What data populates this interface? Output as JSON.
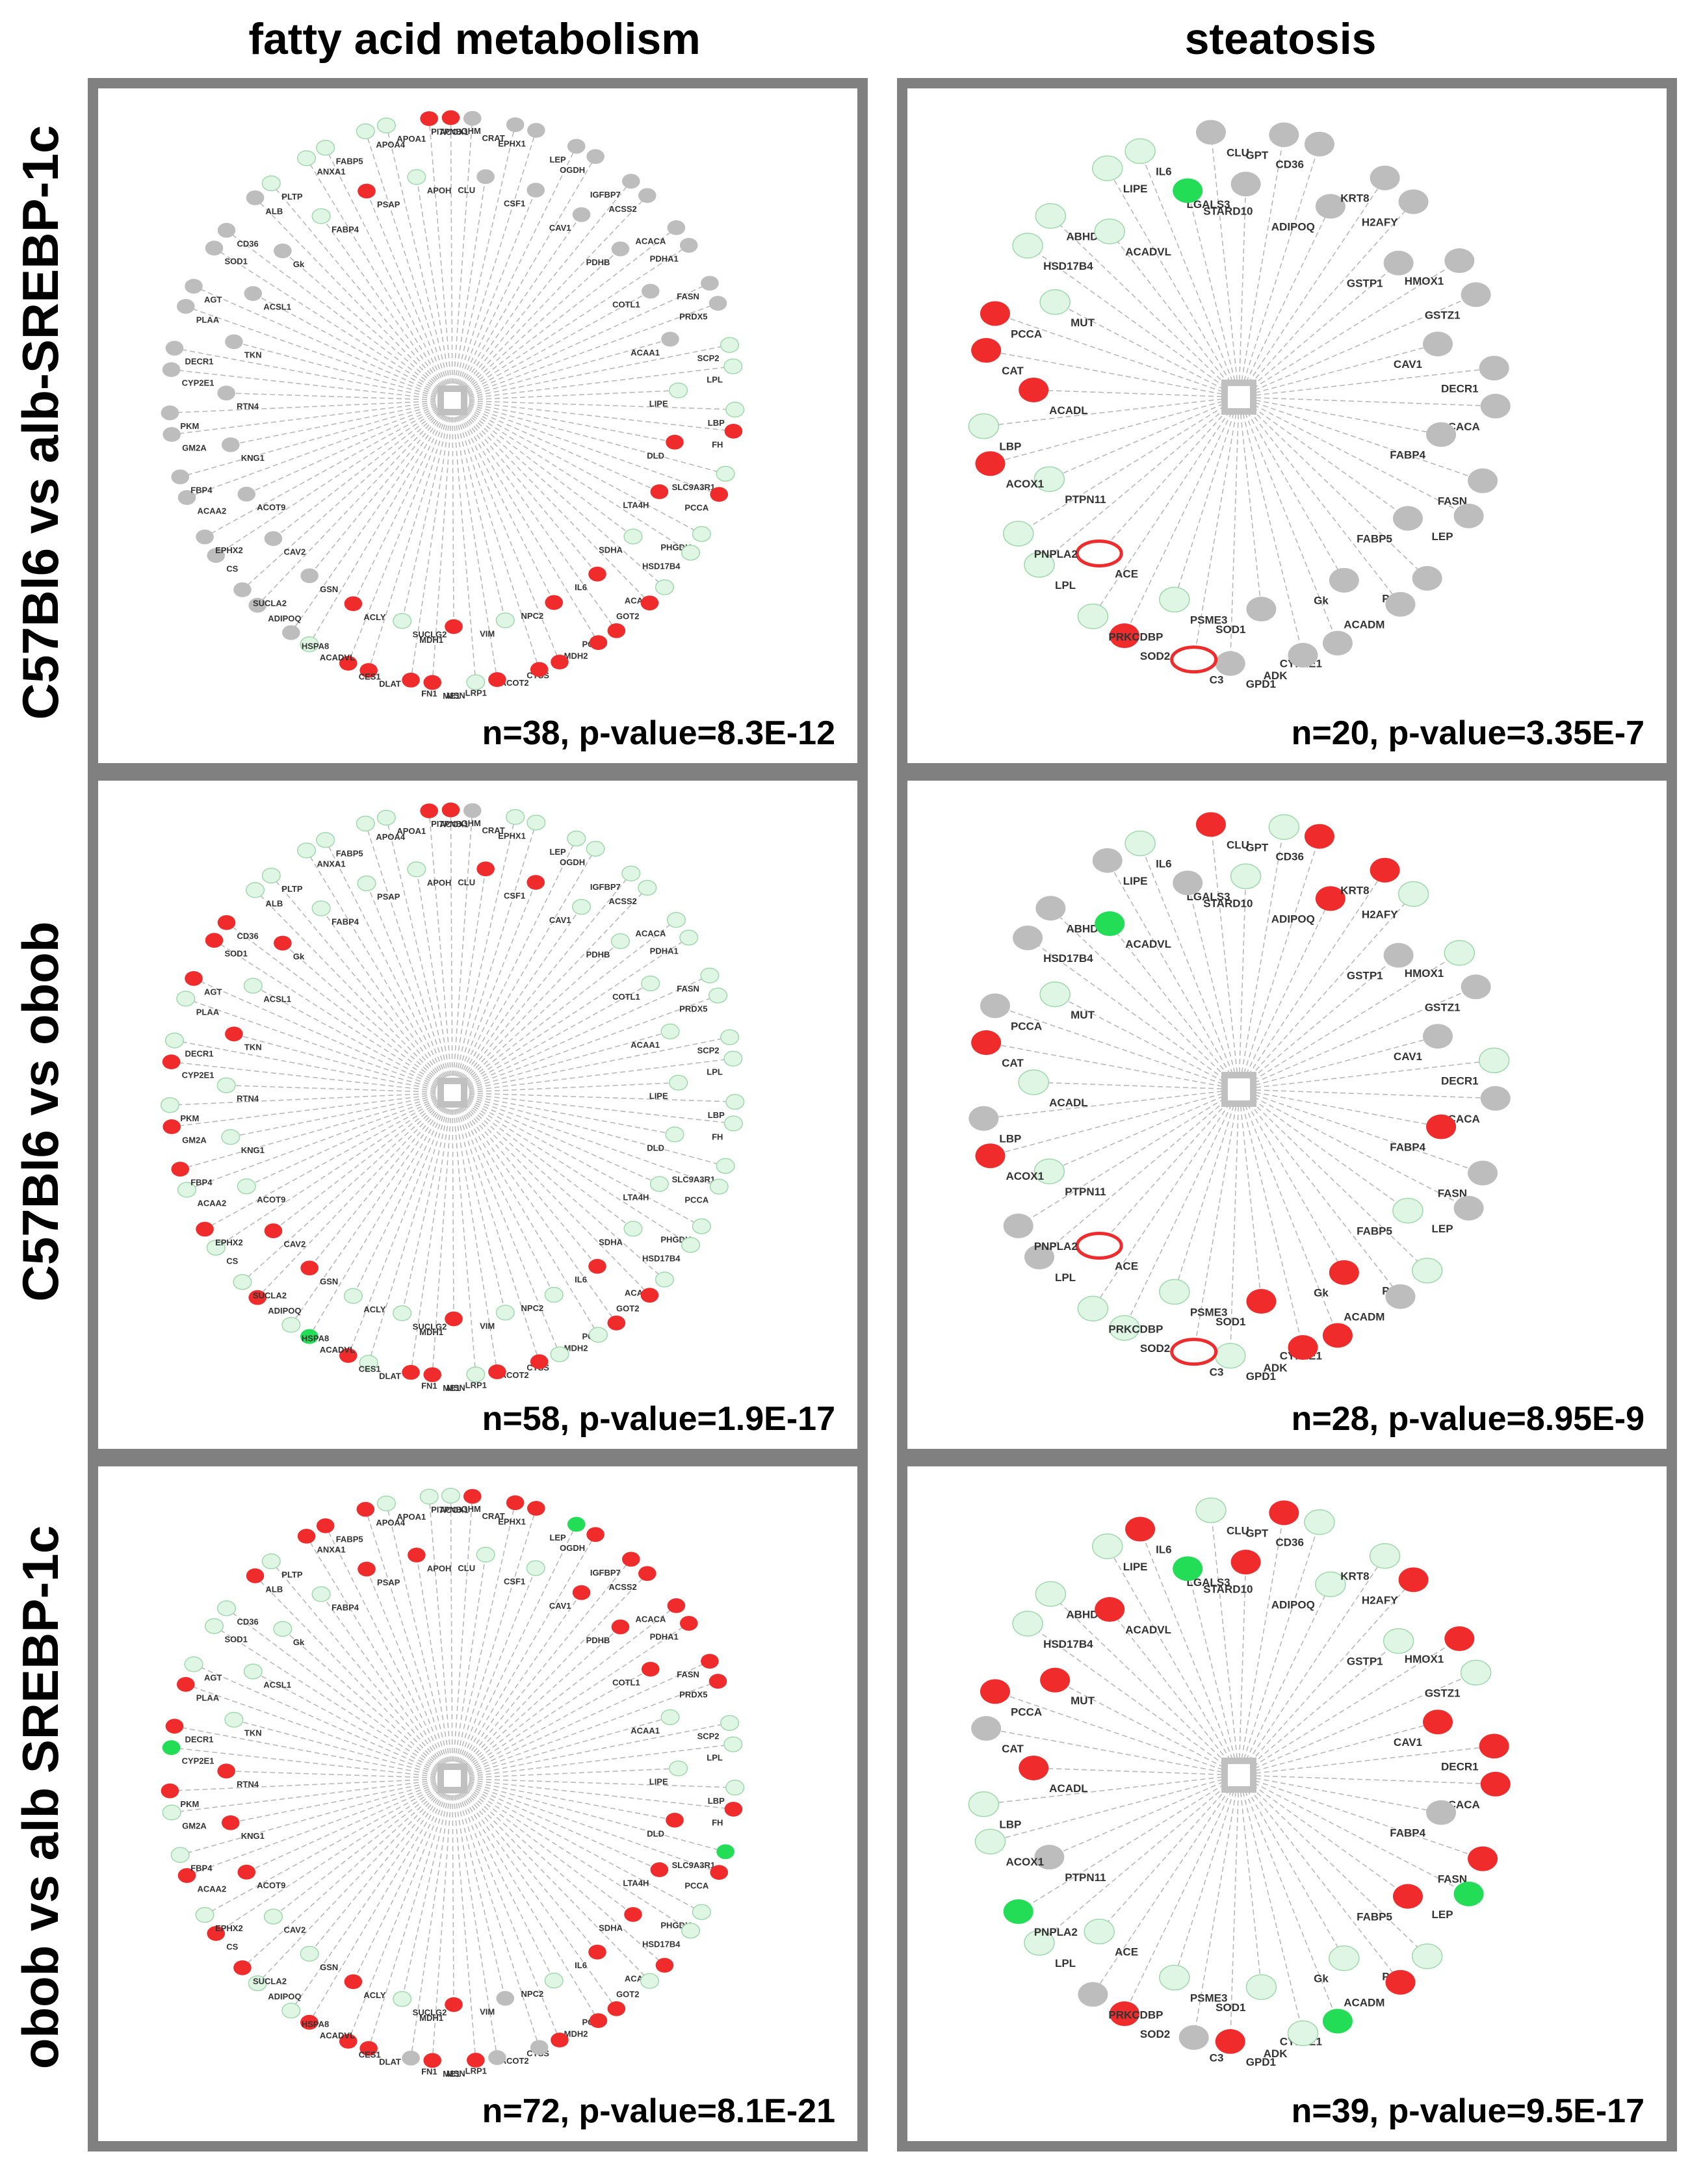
{
  "columns": [
    "fatty acid metabolism",
    "steatosis"
  ],
  "rows": [
    "C57Bl6 vs alb-SREBP-1c",
    "C57Bl6 vs obob",
    "obob vs alb SREBP-1c"
  ],
  "colors": {
    "red": "#ef2b2b",
    "green": "#22dd55",
    "lightgreen": "#dff6e4",
    "grey": "#bdbdbd",
    "edge": "#b8b8b8",
    "hub": "#c0c0c0"
  },
  "fam": {
    "genes": [
      "PITPNB",
      "CLU",
      "CRAT",
      "EPHX1",
      "CSF1",
      "LEP",
      "OGDH",
      "CAV1",
      "IGFBP7",
      "ACSS2",
      "PDHB",
      "ACACA",
      "PDHA1",
      "COTL1",
      "FASN",
      "PRDX5",
      "ACAA1",
      "SCP2",
      "LPL",
      "LIPE",
      "LBP",
      "FH",
      "DLD",
      "SLC9A3R1",
      "PCCA",
      "LTA4H",
      "PHGDH",
      "HSD17B4",
      "SDHA",
      "ACADL",
      "GOT2",
      "IL6",
      "PCCB",
      "MDH2",
      "NPC2",
      "CTSS",
      "ACOT2",
      "VIM",
      "LRP1",
      "MSN",
      "MDH1",
      "ME1",
      "FN1",
      "SUCLG2",
      "DLAT",
      "CES1",
      "ACLY",
      "ACADVL",
      "HSPA8",
      "GSN",
      "ADIPOQ",
      "SUCLA2",
      "CAV2",
      "CS",
      "EPHX2",
      "ACOT9",
      "ACAA2",
      "FBP4",
      "KNG1",
      "GM2A",
      "PKM",
      "RTN4",
      "CYP2E1",
      "DECR1",
      "TKN",
      "PLAA",
      "AGT",
      "ACSL1",
      "SOD1",
      "CD36",
      "Gk",
      "ALB",
      "PLTP",
      "FABP4",
      "ANXA1",
      "FABP5",
      "PSAP",
      "APOA4",
      "APOA1",
      "APOH",
      "ACOX1",
      "GHM"
    ],
    "panels": [
      {
        "stat": "n=38, p-value=8.3E-12",
        "states": {
          "PSAP": "r",
          "FN1": "r",
          "LRP1": "r",
          "PCCB": "r",
          "NPC2": "r",
          "ME1": "r",
          "MDH1": "r",
          "ACOT2": "r",
          "ACOX1": "r",
          "GHM": "r",
          "ACLY": "r",
          "DLAT": "r",
          "CES1": "r",
          "IL6": "r",
          "GOT2": "r",
          "MDH2": "r",
          "DLD": "r",
          "FH": "r",
          "LTA4H": "r",
          "PCCA": "r",
          "CTSS": "r",
          "ACADL": "g",
          "SDHA": "g",
          "PHGDH": "g",
          "HSD17B4": "g",
          "SLC9A3R1": "g",
          "LBP": "g",
          "LPL": "g",
          "LIPE": "g",
          "SCP2": "g",
          "ANXA1": "g",
          "APOA4": "g",
          "APOA1": "g",
          "APOH": "g",
          "FABP5": "g",
          "FABP4": "g",
          "PLTP": "g",
          "ACADVL": "g",
          "MSN": "g",
          "VIM": "g",
          "SUCLG2": "g"
        }
      },
      {
        "stat": "n=58, p-value=1.9E-17",
        "states": {
          "GSN": "r",
          "ADIPOQ": "r",
          "CAV2": "r",
          "CLU": "r",
          "EPHX2": "r",
          "CSF1": "r",
          "FBP4": "r",
          "CYP2E1": "r",
          "TKN": "r",
          "AGT": "r",
          "SOD1": "r",
          "CD36": "r",
          "Gk": "r",
          "GM2A": "r",
          "FN1": "r",
          "LRP1": "r",
          "PCCB": "r",
          "ME1": "r",
          "MDH1": "r",
          "ACOT2": "r",
          "ACOX1": "r",
          "GHM": "r",
          "CES1": "r",
          "IL6": "r",
          "GOT2": "r",
          "ACADVL": "G",
          "HSPA8": "g",
          "SUCLA2": "g",
          "CS": "g",
          "CRAT": "g",
          "EPHX1": "g",
          "ACOT9": "g",
          "ACAA2": "g",
          "KNG1": "g",
          "PKM": "g",
          "RTN4": "g",
          "DECR1": "g",
          "PLAA": "g",
          "ACSL1": "g",
          "ALB": "g",
          "PLTP": "g",
          "FABP4": "g",
          "FABP5": "g",
          "PSAP": "g",
          "APOA4": "g",
          "APOA1": "g",
          "APOH": "g",
          "ANXA1": "g",
          "ACLY": "g",
          "DLAT": "g",
          "SUCLG2": "g",
          "MSN": "g",
          "VIM": "g",
          "CTSS": "g",
          "NPC2": "g",
          "MDH2": "g",
          "PHGDH": "g",
          "HSD17B4": "g",
          "ACADL": "g",
          "LPL": "g",
          "LIPE": "g",
          "LBP": "g",
          "FH": "g",
          "DLD": "g",
          "SLC9A3R1": "g",
          "PCCA": "g",
          "LTA4H": "g",
          "SDHA": "g",
          "ACAA1": "g",
          "SCP2": "g",
          "COTL1": "g",
          "FASN": "g",
          "PRDX5": "g",
          "PDHA1": "g",
          "PDHB": "g",
          "ACACA": "g",
          "ACSS2": "g",
          "IGFBP7": "g",
          "CAV1": "g",
          "OGDH": "g",
          "LEP": "g"
        }
      },
      {
        "stat": "n=72, p-value=8.1E-21",
        "states": {
          "PITPNB": "r",
          "SUCLA2": "r",
          "CS": "r",
          "CRAT": "r",
          "EPHX1": "r",
          "ACOT9": "r",
          "OGDH": "r",
          "CAV1": "r",
          "ACAA2": "r",
          "KNG1": "r",
          "PKM": "r",
          "RTN4": "r",
          "DECR1": "r",
          "PLAA": "r",
          "ALB": "r",
          "FABP5": "r",
          "PSAP": "r",
          "APOA4": "r",
          "APOH": "r",
          "ANXA1": "r",
          "ACLY": "r",
          "DLAT": "r",
          "ACADVL": "r",
          "CES1": "r",
          "MDH1": "r",
          "ME1": "r",
          "MSN": "r",
          "PCCB": "r",
          "MDH2": "r",
          "CTSS": "r",
          "IL6": "r",
          "SDHA": "r",
          "ACADL": "r",
          "LTA4H": "r",
          "DLD": "r",
          "FH": "r",
          "PCCA": "r",
          "FASN": "r",
          "COTL1": "r",
          "PRDX5": "r",
          "ACSS2": "r",
          "PDHB": "r",
          "ACACA": "r",
          "PDHA1": "r",
          "IGFBP7": "r",
          "CYP2E1": "G",
          "SLC9A3R1": "G",
          "LEP": "G",
          "CLU": "g",
          "CSF1": "g",
          "EPHX2": "g",
          "GSN": "g",
          "HSPA8": "g",
          "ADIPOQ": "g",
          "CAV2": "g",
          "FBP4": "g",
          "GM2A": "g",
          "TKN": "g",
          "AGT": "g",
          "SOD1": "g",
          "CD36": "g",
          "Gk": "g",
          "ACSL1": "g",
          "PLTP": "g",
          "FABP4": "g",
          "APOA1": "g",
          "ACOX1": "g",
          "GHM": "g",
          "SUCLG2": "g",
          "NPC2": "g",
          "GOT2": "g",
          "HSD17B4": "g",
          "PHGDH": "g",
          "LBP": "g",
          "LPL": "g",
          "LIPE": "g",
          "SCP2": "g",
          "ACAA1": "g"
        }
      }
    ]
  },
  "ste": {
    "genes": [
      "CLU",
      "LGALS3",
      "GPT",
      "CD36",
      "ADIPOQ",
      "KRT8",
      "H2AFY",
      "GSTP1",
      "HMOX1",
      "GSTZ1",
      "CAV1",
      "DECR1",
      "ACACA",
      "FABP4",
      "FASN",
      "LEP",
      "FABP5",
      "PCK1",
      "ACADM",
      "Gk",
      "CYP2E1",
      "ADK",
      "SOD1",
      "GPD1",
      "C3",
      "PSME3",
      "SOD2",
      "PRKCDBP",
      "ACE",
      "LPL",
      "PNPLA2",
      "PTPN11",
      "ACOX1",
      "LBP",
      "ACADL",
      "CAT",
      "PCCA",
      "MUT",
      "HSD17B4",
      "ABHD5",
      "ACADVL",
      "LIPE",
      "IL6",
      "STARD10"
    ],
    "panels": [
      {
        "stat": "n=20, p-value=3.35E-7",
        "states": {
          "C3": "ro",
          "ACE": "ro",
          "SOD2": "r",
          "PCCA": "r",
          "ACADL": "r",
          "ACOX1": "r",
          "CAT": "r",
          "PSME3": "g",
          "PRKCDBP": "g",
          "PTPN11": "g",
          "MUT": "g",
          "ACADVL": "g",
          "IL6": "g",
          "LIPE": "g",
          "STARD10": "G",
          "HSD17B4": "g",
          "ABHD5": "g",
          "LBP": "g",
          "PNPLA2": "g",
          "LPL": "g"
        }
      },
      {
        "stat": "n=28, p-value=8.95E-9",
        "states": {
          "CLU": "r",
          "ADIPOQ": "r",
          "CD36": "r",
          "KRT8": "r",
          "FABP4": "r",
          "SOD1": "r",
          "CYP2E1": "r",
          "Gk": "r",
          "ADK": "r",
          "ACE": "ro",
          "C3": "ro",
          "ACOX1": "r",
          "CAT": "r",
          "ACADVL": "G",
          "LGALS3": "g",
          "GPT": "g",
          "H2AFY": "g",
          "HMOX1": "g",
          "DECR1": "g",
          "FABP5": "g",
          "PCK1": "g",
          "GPD1": "g",
          "SOD2": "g",
          "PSME3": "g",
          "PRKCDBP": "g",
          "PTPN11": "g",
          "ACADL": "g",
          "MUT": "g",
          "IL6": "g"
        }
      },
      {
        "stat": "n=39, p-value=9.5E-17",
        "states": {
          "LGALS3": "r",
          "GPT": "r",
          "H2AFY": "r",
          "HMOX1": "r",
          "CAV1": "r",
          "DECR1": "r",
          "ACACA": "r",
          "FABP5": "r",
          "FASN": "r",
          "ACADM": "r",
          "GPD1": "r",
          "SOD2": "r",
          "PCCA": "r",
          "ACADL": "r",
          "MUT": "r",
          "ACADVL": "r",
          "IL6": "r",
          "CYP2E1": "G",
          "PNPLA2": "G",
          "LEP": "G",
          "STARD10": "G",
          "CLU": "g",
          "CD36": "g",
          "ADIPOQ": "g",
          "KRT8": "g",
          "GSTP1": "g",
          "GSTZ1": "g",
          "PCK1": "g",
          "SOD1": "g",
          "Gk": "g",
          "ADK": "g",
          "PSME3": "g",
          "ACE": "g",
          "ACOX1": "g",
          "LPL": "g",
          "LBP": "g",
          "ABHD5": "g",
          "HSD17B4": "g",
          "LIPE": "g"
        }
      }
    ]
  }
}
